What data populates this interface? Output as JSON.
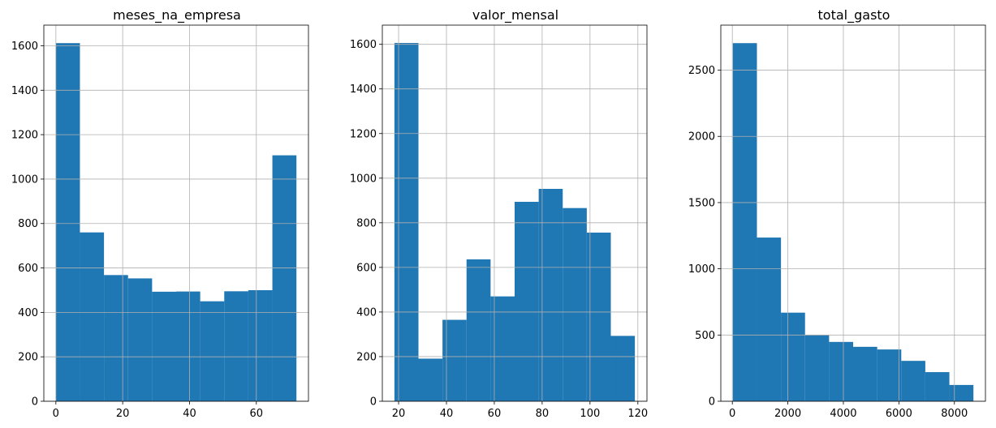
{
  "chart_data": [
    {
      "type": "bar",
      "title": "meses_na_empresa",
      "xlabel": "",
      "ylabel": "",
      "grid": true,
      "bin_edges": [
        0,
        7.2,
        14.4,
        21.6,
        28.8,
        36,
        43.2,
        50.4,
        57.6,
        64.8,
        72
      ],
      "values": [
        1612,
        760,
        568,
        553,
        493,
        494,
        450,
        495,
        500,
        1107
      ],
      "xlim": [
        -3.6,
        75.6
      ],
      "ylim": [
        0,
        1693
      ],
      "xticks": [
        0,
        20,
        40,
        60
      ],
      "yticks": [
        0,
        200,
        400,
        600,
        800,
        1000,
        1200,
        1400,
        1600
      ],
      "color": "#1f77b4"
    },
    {
      "type": "bar",
      "title": "valor_mensal",
      "xlabel": "",
      "ylabel": "",
      "grid": true,
      "bin_edges": [
        18.25,
        28.3,
        38.35,
        48.4,
        58.45,
        68.5,
        78.55,
        88.6,
        98.65,
        108.7,
        118.75
      ],
      "values": [
        1606,
        191,
        365,
        636,
        470,
        894,
        952,
        866,
        756,
        293
      ],
      "xlim": [
        13.2,
        123.8
      ],
      "ylim": [
        0,
        1686
      ],
      "xticks": [
        20,
        40,
        60,
        80,
        100,
        120
      ],
      "yticks": [
        0,
        200,
        400,
        600,
        800,
        1000,
        1200,
        1400,
        1600
      ],
      "color": "#1f77b4"
    },
    {
      "type": "bar",
      "title": "total_gasto",
      "xlabel": "",
      "ylabel": "",
      "grid": true,
      "bin_edges": [
        18.8,
        885.4,
        1752,
        2618.6,
        3485.2,
        4351.8,
        5218.4,
        6085,
        6951.6,
        7818.2,
        8684.8
      ],
      "values": [
        2704,
        1236,
        669,
        500,
        448,
        411,
        391,
        305,
        220,
        123
      ],
      "xlim": [
        -415,
        9118
      ],
      "ylim": [
        0,
        2840
      ],
      "xticks": [
        0,
        2000,
        4000,
        6000,
        8000
      ],
      "yticks": [
        0,
        500,
        1000,
        1500,
        2000,
        2500
      ],
      "color": "#1f77b4"
    }
  ]
}
